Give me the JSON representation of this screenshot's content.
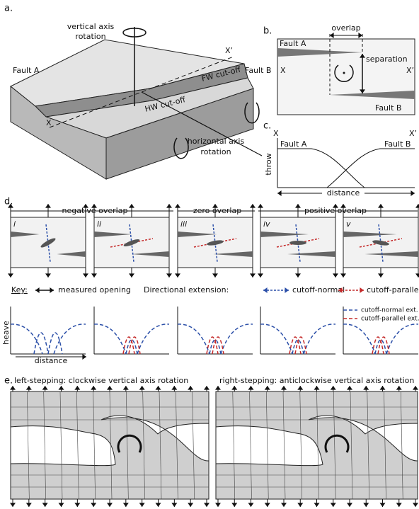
{
  "panel_a": {
    "label": "a.",
    "vertical_rotation": [
      "vertical axis",
      "rotation"
    ],
    "fault_a": "Fault A",
    "x_prime": "X’",
    "fault_b": "Fault B",
    "fw_cutoff": "FW cut-off",
    "hw_cutoff": "HW cut-off",
    "x": "X",
    "horizontal_rotation": [
      "horizontal axis",
      "rotation"
    ]
  },
  "panel_b": {
    "label": "b.",
    "overlap": "overlap",
    "fault_a": "Fault A",
    "x": "X",
    "separation": "separation",
    "x_prime": "X’",
    "fault_b": "Fault B"
  },
  "panel_c": {
    "label": "c.",
    "x": "X",
    "x_prime": "X’",
    "fault_a": "Fault A",
    "fault_b": "Fault B",
    "y_axis": "throw",
    "x_axis": "distance"
  },
  "panel_d": {
    "label": "d.",
    "overlap_types": [
      "negative overlap",
      "zero overlap",
      "positive overlap"
    ],
    "cases": [
      "i",
      "ii",
      "iii",
      "iv",
      "v"
    ],
    "key": {
      "title": "Key:",
      "measured_opening": "measured opening",
      "directional_extension": "Directional extension:",
      "cutoff_normal": "cutoff-normal",
      "cutoff_parallel": "cutoff-parallel"
    },
    "graph_legend": [
      "cutoff-normal ext.",
      "cutoff-parallel ext."
    ],
    "y_axis": "heave",
    "x_axis": "distance"
  },
  "panel_e": {
    "label": "e.",
    "titles": [
      "left-stepping: clockwise vertical axis rotation",
      "right-stepping: anticlockwise vertical axis rotation"
    ]
  }
}
